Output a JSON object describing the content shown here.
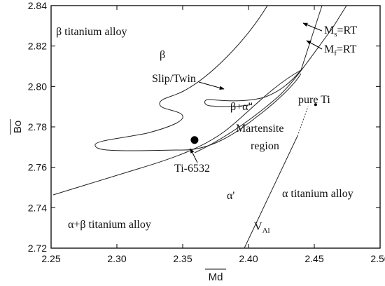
{
  "axes": {
    "xlabel": "Md",
    "ylabel": "Bo",
    "xlim": [
      2.25,
      2.5
    ],
    "ylim": [
      2.72,
      2.84
    ],
    "xticks": [
      "2.25",
      "2.30",
      "2.35",
      "2.40",
      "2.45",
      "2.50"
    ],
    "yticks": [
      "2.72",
      "2.74",
      "2.76",
      "2.78",
      "2.80",
      "2.82",
      "2.84"
    ],
    "xlabel_overline": true,
    "ylabel_overline": true
  },
  "regions": {
    "beta_alloy": "β titanium alloy",
    "beta": "β",
    "beta_alpha2": "β+α\"",
    "martensite_line1": "Martensite",
    "martensite_line2": "region",
    "alpha_prime": "α'",
    "alpha_alloy": "α titanium alloy",
    "alpha_beta_alloy": "α+β titanium alloy"
  },
  "annotations": {
    "slip_twin": "Slip/Twin",
    "ms_main": "M",
    "ms_sub": "s",
    "ms_rest": "=RT",
    "mf_main": "M",
    "mf_sub": "f",
    "mf_rest": "=RT",
    "pure_ti": "pure Ti",
    "ti6532": "Ti-6532",
    "val_main": "V",
    "val_sub": "Al"
  },
  "points": [
    {
      "label": "Ti-6532",
      "x": 2.359,
      "y": 2.7735
    },
    {
      "label": "pure Ti",
      "x": 2.451,
      "y": 2.791
    }
  ],
  "colors": {
    "lines": "#222222",
    "background": "#ffffff"
  }
}
